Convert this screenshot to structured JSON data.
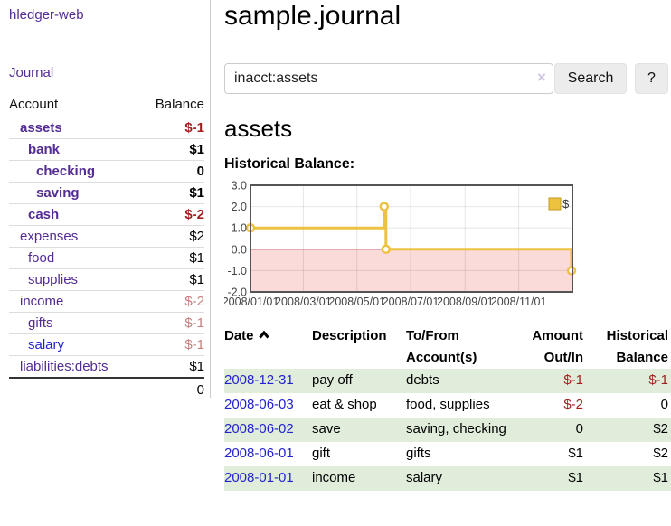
{
  "theme": {
    "link_purple": "#532c93",
    "link_blue": "#2323cc",
    "negative": "#a31f1f",
    "negative_soft": "#c5807f",
    "row_shade": "#e0eddb",
    "accent_gold": "#edc240"
  },
  "brand": "hledger-web",
  "sidebar": {
    "journal_link": "Journal",
    "accounts": {
      "col_account": "Account",
      "col_balance": "Balance",
      "rows": [
        {
          "name": "assets",
          "indent": 1,
          "bold": true,
          "blue": false,
          "balance": "$-1",
          "balance_class": "neg"
        },
        {
          "name": "bank",
          "indent": 2,
          "bold": true,
          "blue": false,
          "balance": "$1",
          "balance_class": ""
        },
        {
          "name": "checking",
          "indent": 3,
          "bold": true,
          "blue": false,
          "balance": "0",
          "balance_class": ""
        },
        {
          "name": "saving",
          "indent": 3,
          "bold": true,
          "blue": false,
          "balance": "$1",
          "balance_class": ""
        },
        {
          "name": "cash",
          "indent": 2,
          "bold": true,
          "blue": false,
          "balance": "$-2",
          "balance_class": "neg"
        },
        {
          "name": "expenses",
          "indent": 1,
          "bold": false,
          "blue": false,
          "balance": "$2",
          "balance_class": ""
        },
        {
          "name": "food",
          "indent": 2,
          "bold": false,
          "blue": false,
          "balance": "$1",
          "balance_class": ""
        },
        {
          "name": "supplies",
          "indent": 2,
          "bold": false,
          "blue": false,
          "balance": "$1",
          "balance_class": ""
        },
        {
          "name": "income",
          "indent": 1,
          "bold": false,
          "blue": false,
          "balance": "$-2",
          "balance_class": "negsoft"
        },
        {
          "name": "gifts",
          "indent": 2,
          "bold": false,
          "blue": false,
          "balance": "$-1",
          "balance_class": "negsoft"
        },
        {
          "name": "salary",
          "indent": 2,
          "bold": false,
          "blue": true,
          "balance": "$-1",
          "balance_class": "negsoft"
        },
        {
          "name": "liabilities:debts",
          "indent": 1,
          "bold": false,
          "blue": false,
          "balance": "$1",
          "balance_class": ""
        }
      ],
      "total": "0"
    }
  },
  "main": {
    "title": "sample.journal",
    "search": {
      "value": "inacct:assets",
      "clear": "×",
      "button": "Search",
      "help": "?"
    },
    "heading": "assets",
    "chart_label": "Historical Balance:"
  },
  "chart_data": {
    "type": "line",
    "step": true,
    "title": "Historical Balance",
    "series": [
      {
        "name": "$",
        "color": "#edc240",
        "points": [
          [
            "2008-01-01",
            1
          ],
          [
            "2008-06-01",
            2
          ],
          [
            "2008-06-03",
            0
          ],
          [
            "2008-12-31",
            -1
          ]
        ]
      }
    ],
    "ylim": [
      -2,
      3
    ],
    "yticks": [
      "3.0",
      "2.0",
      "1.0",
      "0.0",
      "-1.0",
      "-2.0"
    ],
    "xticks": [
      "2008/01/01",
      "2008/03/01",
      "2008/05/01",
      "2008/07/01",
      "2008/09/01",
      "2008/11/01"
    ],
    "legend": {
      "label": "$",
      "position": "top-right"
    },
    "grid": true,
    "colors": {
      "border": "#545454",
      "grid": "rgba(0,0,0,0.10)",
      "zero_line": "#aa3333",
      "negative_fill": "#fbdada",
      "marker_fill": "#ffffff",
      "legend_swatch_border": "#c49a1f",
      "tick_text": "#444444"
    }
  },
  "register": {
    "headers": {
      "date": "Date",
      "description": "Description",
      "accounts": "To/From Account(s)",
      "amount": "Amount Out/In",
      "balance": "Historical Balance"
    },
    "rows": [
      {
        "date": "2008-12-31",
        "description": "pay off",
        "accounts": "debts",
        "amount": "$-1",
        "amount_class": "neg",
        "balance": "$-1",
        "balance_class": "neg",
        "shaded": true
      },
      {
        "date": "2008-06-03",
        "description": "eat & shop",
        "accounts": "food, supplies",
        "amount": "$-2",
        "amount_class": "neg",
        "balance": "0",
        "balance_class": "",
        "shaded": false
      },
      {
        "date": "2008-06-02",
        "description": "save",
        "accounts": "saving, checking",
        "amount": "0",
        "amount_class": "",
        "balance": "$2",
        "balance_class": "",
        "shaded": true
      },
      {
        "date": "2008-06-01",
        "description": "gift",
        "accounts": "gifts",
        "amount": "$1",
        "amount_class": "",
        "balance": "$2",
        "balance_class": "",
        "shaded": false
      },
      {
        "date": "2008-01-01",
        "description": "income",
        "accounts": "salary",
        "amount": "$1",
        "amount_class": "",
        "balance": "$1",
        "balance_class": "",
        "shaded": true
      }
    ]
  }
}
